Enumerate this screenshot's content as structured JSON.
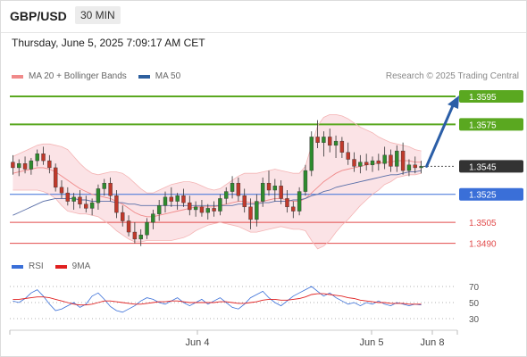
{
  "header": {
    "symbol": "GBP/USD",
    "timeframe": "30 MIN"
  },
  "datetime": "Thursday, June 5, 2025 7:09:17 AM CET",
  "legend": {
    "ma20": {
      "label": "MA 20 + Bollinger Bands",
      "color": "#f08a8a"
    },
    "ma50": {
      "label": "MA 50",
      "color": "#2d5f9e"
    }
  },
  "credit": "Research © 2025 Trading Central",
  "levels": [
    {
      "label": "1.3595",
      "type": "resistance",
      "color": "#5aa820"
    },
    {
      "label": "1.3575",
      "type": "resistance",
      "color": "#5aa820"
    },
    {
      "label": "1.3545",
      "type": "current",
      "color": "#333333"
    },
    {
      "label": "1.3525",
      "type": "pivot",
      "color": "#3a6fd8"
    },
    {
      "label": "1.3505",
      "type": "support",
      "color": "#e24b4b"
    },
    {
      "label": "1.3490",
      "type": "support",
      "color": "#e24b4b"
    }
  ],
  "rsi_legend": {
    "rsi": {
      "label": "RSI",
      "color": "#3a6fd8"
    },
    "ma9": {
      "label": "9MA",
      "color": "#e02020"
    }
  },
  "rsi_ticks": [
    "70",
    "50",
    "30"
  ],
  "x_labels": [
    "Jun 4",
    "Jun 5",
    "Jun 8"
  ],
  "chart_data": {
    "type": "candlestick",
    "title": "GBP/USD",
    "timeframe": "30 MIN",
    "ylim": [
      1.3484,
      1.3602
    ],
    "price_levels": [
      1.3595,
      1.3575,
      1.3545,
      1.3525,
      1.3505,
      1.349
    ],
    "candles": [
      [
        1.3548,
        1.3553,
        1.3539,
        1.3544
      ],
      [
        1.3544,
        1.355,
        1.3538,
        1.3547
      ],
      [
        1.3547,
        1.3552,
        1.354,
        1.3543
      ],
      [
        1.3543,
        1.3551,
        1.3539,
        1.3549
      ],
      [
        1.3549,
        1.3557,
        1.3545,
        1.3554
      ],
      [
        1.3554,
        1.3559,
        1.3546,
        1.3549
      ],
      [
        1.3549,
        1.3553,
        1.354,
        1.3544
      ],
      [
        1.3544,
        1.3547,
        1.3527,
        1.353
      ],
      [
        1.353,
        1.3535,
        1.3522,
        1.3526
      ],
      [
        1.3526,
        1.353,
        1.3517,
        1.352
      ],
      [
        1.352,
        1.3526,
        1.3514,
        1.3523
      ],
      [
        1.3523,
        1.3528,
        1.3515,
        1.3518
      ],
      [
        1.3518,
        1.3524,
        1.3512,
        1.3515
      ],
      [
        1.3515,
        1.3522,
        1.351,
        1.3519
      ],
      [
        1.3519,
        1.3532,
        1.3514,
        1.3529
      ],
      [
        1.3529,
        1.3536,
        1.3524,
        1.3533
      ],
      [
        1.3533,
        1.3537,
        1.352,
        1.3524
      ],
      [
        1.3524,
        1.3528,
        1.3508,
        1.3512
      ],
      [
        1.3512,
        1.3517,
        1.3502,
        1.3506
      ],
      [
        1.3506,
        1.351,
        1.3495,
        1.3498
      ],
      [
        1.3498,
        1.3505,
        1.349,
        1.3493
      ],
      [
        1.3493,
        1.35,
        1.3488,
        1.3496
      ],
      [
        1.3496,
        1.3508,
        1.3493,
        1.3505
      ],
      [
        1.3505,
        1.3514,
        1.35,
        1.3511
      ],
      [
        1.3511,
        1.3521,
        1.3506,
        1.3517
      ],
      [
        1.3517,
        1.3527,
        1.3512,
        1.3523
      ],
      [
        1.3523,
        1.353,
        1.3516,
        1.352
      ],
      [
        1.352,
        1.3526,
        1.3514,
        1.3524
      ],
      [
        1.3524,
        1.3529,
        1.3516,
        1.3519
      ],
      [
        1.3519,
        1.3524,
        1.351,
        1.3514
      ],
      [
        1.3514,
        1.352,
        1.3509,
        1.3516
      ],
      [
        1.3516,
        1.3521,
        1.3509,
        1.3512
      ],
      [
        1.3512,
        1.3518,
        1.3507,
        1.3515
      ],
      [
        1.3515,
        1.352,
        1.3509,
        1.3513
      ],
      [
        1.3513,
        1.3525,
        1.351,
        1.3522
      ],
      [
        1.3522,
        1.353,
        1.3518,
        1.3527
      ],
      [
        1.3527,
        1.3538,
        1.3522,
        1.3533
      ],
      [
        1.3533,
        1.3537,
        1.352,
        1.3524
      ],
      [
        1.3524,
        1.3529,
        1.3512,
        1.3516
      ],
      [
        1.3516,
        1.3522,
        1.35,
        1.3507
      ],
      [
        1.3507,
        1.3525,
        1.3502,
        1.352
      ],
      [
        1.352,
        1.3537,
        1.3516,
        1.3533
      ],
      [
        1.3533,
        1.3542,
        1.3524,
        1.3528
      ],
      [
        1.3528,
        1.3536,
        1.352,
        1.3531
      ],
      [
        1.3531,
        1.3535,
        1.3518,
        1.3522
      ],
      [
        1.3522,
        1.3528,
        1.3512,
        1.3516
      ],
      [
        1.3516,
        1.352,
        1.3508,
        1.3513
      ],
      [
        1.3513,
        1.353,
        1.351,
        1.3527
      ],
      [
        1.3527,
        1.3546,
        1.3524,
        1.3542
      ],
      [
        1.3542,
        1.357,
        1.3538,
        1.3566
      ],
      [
        1.3566,
        1.3578,
        1.3558,
        1.3562
      ],
      [
        1.3562,
        1.357,
        1.3552,
        1.3566
      ],
      [
        1.3566,
        1.3572,
        1.3555,
        1.356
      ],
      [
        1.356,
        1.3567,
        1.3551,
        1.3563
      ],
      [
        1.3563,
        1.3566,
        1.3551,
        1.3555
      ],
      [
        1.3555,
        1.3562,
        1.3546,
        1.355
      ],
      [
        1.355,
        1.3555,
        1.3541,
        1.3545
      ],
      [
        1.3545,
        1.3553,
        1.354,
        1.3548
      ],
      [
        1.3548,
        1.3554,
        1.3542,
        1.3546
      ],
      [
        1.3546,
        1.3552,
        1.3541,
        1.3549
      ],
      [
        1.3549,
        1.3554,
        1.3542,
        1.3547
      ],
      [
        1.3547,
        1.3559,
        1.3543,
        1.3553
      ],
      [
        1.3553,
        1.3557,
        1.3541,
        1.3545
      ],
      [
        1.3545,
        1.356,
        1.3541,
        1.3556
      ],
      [
        1.3556,
        1.3562,
        1.3539,
        1.3542
      ],
      [
        1.3542,
        1.355,
        1.3538,
        1.3546
      ],
      [
        1.3546,
        1.3552,
        1.354,
        1.3544
      ],
      [
        1.3544,
        1.3549,
        1.354,
        1.3545
      ]
    ],
    "ma20": [
      1.354,
      1.3541,
      1.3542,
      1.3543,
      1.3544,
      1.3544,
      1.3543,
      1.3541,
      1.3538,
      1.3535,
      1.3532,
      1.3529,
      1.3527,
      1.3525,
      1.3524,
      1.3523,
      1.3522,
      1.352,
      1.3518,
      1.3515,
      1.3512,
      1.351,
      1.3509,
      1.3509,
      1.351,
      1.3511,
      1.3512,
      1.3513,
      1.3514,
      1.3515,
      1.3516,
      1.3516,
      1.3516,
      1.3516,
      1.3517,
      1.3518,
      1.3519,
      1.352,
      1.352,
      1.3519,
      1.3519,
      1.352,
      1.3521,
      1.3522,
      1.3522,
      1.3521,
      1.352,
      1.352,
      1.3522,
      1.3526,
      1.353,
      1.3534,
      1.3537,
      1.354,
      1.3542,
      1.3543,
      1.3544,
      1.3545,
      1.3546,
      1.3547,
      1.3547,
      1.3548,
      1.3548,
      1.3549,
      1.3549,
      1.3549,
      1.3548,
      1.3548
    ],
    "bb_upper": [
      1.3552,
      1.3554,
      1.3556,
      1.3558,
      1.356,
      1.3561,
      1.3561,
      1.356,
      1.3559,
      1.3557,
      1.3552,
      1.3547,
      1.3543,
      1.354,
      1.3539,
      1.354,
      1.3541,
      1.3541,
      1.354,
      1.3537,
      1.3533,
      1.3529,
      1.3526,
      1.3526,
      1.3528,
      1.353,
      1.3532,
      1.3533,
      1.3534,
      1.3534,
      1.3533,
      1.3531,
      1.3529,
      1.3528,
      1.3529,
      1.3532,
      1.3535,
      1.3538,
      1.354,
      1.354,
      1.354,
      1.3541,
      1.3542,
      1.3543,
      1.3542,
      1.3541,
      1.354,
      1.354,
      1.3545,
      1.356,
      1.3574,
      1.358,
      1.3582,
      1.3582,
      1.3581,
      1.3579,
      1.3576,
      1.3573,
      1.3571,
      1.3569,
      1.3566,
      1.3564,
      1.3562,
      1.3561,
      1.356,
      1.3559,
      1.3557,
      1.3556
    ],
    "bb_lower": [
      1.3528,
      1.3528,
      1.3528,
      1.3528,
      1.3528,
      1.3527,
      1.3525,
      1.3522,
      1.3517,
      1.3513,
      1.3512,
      1.3511,
      1.3511,
      1.351,
      1.3509,
      1.3506,
      1.3503,
      1.3499,
      1.3496,
      1.3493,
      1.3491,
      1.3491,
      1.3492,
      1.3492,
      1.3492,
      1.3492,
      1.3492,
      1.3493,
      1.3494,
      1.3496,
      1.3499,
      1.3501,
      1.3503,
      1.3504,
      1.3505,
      1.3504,
      1.3503,
      1.3502,
      1.35,
      1.3498,
      1.3498,
      1.3499,
      1.35,
      1.3501,
      1.3502,
      1.3501,
      1.35,
      1.35,
      1.3499,
      1.3492,
      1.3486,
      1.3488,
      1.3492,
      1.3498,
      1.3503,
      1.3507,
      1.3512,
      1.3517,
      1.3521,
      1.3525,
      1.3528,
      1.3532,
      1.3534,
      1.3537,
      1.3538,
      1.3539,
      1.3539,
      1.354
    ],
    "ma50": [
      1.351,
      1.3512,
      1.3514,
      1.3516,
      1.3518,
      1.352,
      1.3521,
      1.3522,
      1.3522,
      1.3522,
      1.3522,
      1.3521,
      1.3521,
      1.352,
      1.352,
      1.352,
      1.352,
      1.3519,
      1.3519,
      1.3518,
      1.3518,
      1.3517,
      1.3517,
      1.3517,
      1.3517,
      1.3517,
      1.3517,
      1.3517,
      1.3517,
      1.3517,
      1.3517,
      1.3517,
      1.3517,
      1.3517,
      1.3517,
      1.3517,
      1.3517,
      1.3518,
      1.3518,
      1.3518,
      1.3518,
      1.3519,
      1.3519,
      1.352,
      1.352,
      1.352,
      1.3521,
      1.3521,
      1.3522,
      1.3524,
      1.3525,
      1.3527,
      1.3528,
      1.353,
      1.3531,
      1.3532,
      1.3533,
      1.3534,
      1.3535,
      1.3536,
      1.3537,
      1.3538,
      1.3539,
      1.3539,
      1.354,
      1.3541,
      1.3541,
      1.3542
    ],
    "projection": {
      "from": 1.3545,
      "to": 1.3595
    },
    "rsi": {
      "ylim": [
        20,
        80
      ],
      "ticks": [
        70,
        50,
        30
      ],
      "rsi": [
        52,
        50,
        55,
        62,
        66,
        58,
        48,
        40,
        42,
        46,
        50,
        44,
        48,
        58,
        62,
        54,
        45,
        40,
        38,
        42,
        46,
        52,
        56,
        54,
        50,
        48,
        52,
        56,
        50,
        46,
        50,
        54,
        48,
        52,
        56,
        50,
        44,
        42,
        48,
        56,
        60,
        64,
        56,
        50,
        46,
        52,
        58,
        62,
        66,
        70,
        64,
        58,
        62,
        56,
        52,
        48,
        50,
        46,
        50,
        48,
        52,
        48,
        46,
        50,
        48,
        46,
        48,
        47
      ],
      "ma9": [
        54,
        54,
        55,
        56,
        57,
        57,
        56,
        54,
        52,
        50,
        48,
        47,
        47,
        48,
        50,
        52,
        52,
        51,
        50,
        49,
        48,
        48,
        49,
        50,
        51,
        51,
        52,
        52,
        51,
        50,
        50,
        50,
        50,
        50,
        51,
        51,
        50,
        49,
        49,
        50,
        51,
        53,
        54,
        54,
        53,
        53,
        54,
        55,
        57,
        60,
        61,
        61,
        60,
        59,
        58,
        56,
        55,
        53,
        52,
        51,
        50,
        50,
        49,
        49,
        49,
        48,
        48,
        48
      ]
    },
    "xlabels": [
      "Jun 4",
      "Jun 5",
      "Jun 8"
    ]
  }
}
